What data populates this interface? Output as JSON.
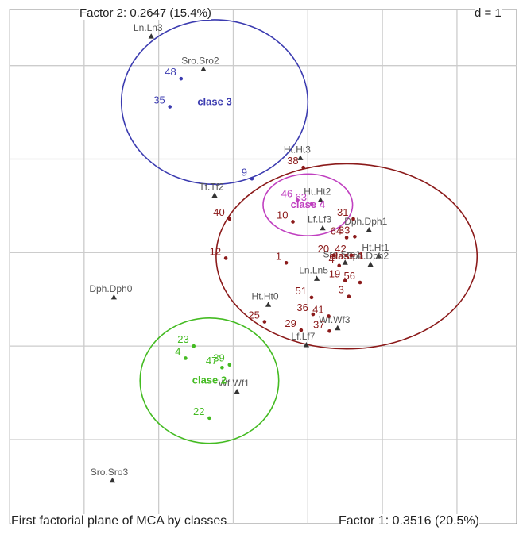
{
  "chart_data": {
    "type": "scatter",
    "title": "First factorial plane of MCA by classes",
    "xlabel": "Factor 1: 0.3516 (20.5%)",
    "ylabel": "Factor 2: 0.2647 (15.4%)",
    "scale_label": "d = 1",
    "grid": true,
    "xlim": [
      -3.0,
      3.8
    ],
    "ylim": [
      -2.9,
      2.6
    ],
    "colors": {
      "modality": "#555555",
      "class1": "#8b1a1a",
      "class2": "#44bb22",
      "class3": "#3b3bb0",
      "class4": "#c040c0",
      "grid": "#cccccc",
      "frame": "#888888"
    },
    "modalities": [
      {
        "label": "Ln.Ln3",
        "x": -1.1,
        "y": 2.31
      },
      {
        "label": "Sro.Sro2",
        "x": -0.4,
        "y": 1.96
      },
      {
        "label": "Tf.Tf2",
        "x": -0.25,
        "y": 0.61
      },
      {
        "label": "Ht.Ht3",
        "x": 0.9,
        "y": 1.01
      },
      {
        "label": "Ht.Ht2",
        "x": 1.17,
        "y": 0.56
      },
      {
        "label": "Lf.Lf3",
        "x": 1.2,
        "y": 0.26
      },
      {
        "label": "Dph.Dph1",
        "x": 1.82,
        "y": 0.24
      },
      {
        "label": "Ht.Ht1",
        "x": 1.95,
        "y": -0.04
      },
      {
        "label": "Sro.Sro1",
        "x": 1.5,
        "y": -0.11
      },
      {
        "label": "Dph.Dph2",
        "x": 1.84,
        "y": -0.13
      },
      {
        "label": "Ln.Ln5",
        "x": 1.12,
        "y": -0.28
      },
      {
        "label": "Dph.Dph0",
        "x": -1.6,
        "y": -0.48
      },
      {
        "label": "Ht.Ht0",
        "x": 0.47,
        "y": -0.56
      },
      {
        "label": "Wf.Wf3",
        "x": 1.4,
        "y": -0.81
      },
      {
        "label": "Lf.Lf7",
        "x": 0.98,
        "y": -0.99
      },
      {
        "label": "Wf.Wf1",
        "x": 0.05,
        "y": -1.49
      },
      {
        "label": "Sro.Sro3",
        "x": -1.62,
        "y": -2.44
      }
    ],
    "classes": [
      {
        "name": "clase 3",
        "color": "#3b3bb0",
        "center": [
          -0.25,
          1.61
        ],
        "radii": [
          1.25,
          0.88
        ],
        "points": [
          {
            "label": "48",
            "x": -0.7,
            "y": 1.86
          },
          {
            "label": "35",
            "x": -0.85,
            "y": 1.56
          },
          {
            "label": "9",
            "x": 0.25,
            "y": 0.79
          }
        ]
      },
      {
        "name": "clase 4",
        "color": "#c040c0",
        "center": [
          1.0,
          0.51
        ],
        "radii": [
          0.6,
          0.33
        ],
        "points": [
          {
            "label": "46",
            "x": 0.86,
            "y": 0.56
          },
          {
            "label": "63",
            "x": 1.05,
            "y": 0.52
          }
        ]
      },
      {
        "name": "clase 1",
        "color": "#8b1a1a",
        "center": [
          1.52,
          -0.04
        ],
        "radii": [
          1.75,
          0.99
        ],
        "points": [
          {
            "label": "38",
            "x": 0.94,
            "y": 0.91
          },
          {
            "label": "40",
            "x": -0.05,
            "y": 0.36
          },
          {
            "label": "10",
            "x": 0.8,
            "y": 0.33
          },
          {
            "label": "12",
            "x": -0.1,
            "y": -0.06
          },
          {
            "label": "1",
            "x": 0.71,
            "y": -0.11
          },
          {
            "label": "31",
            "x": 1.61,
            "y": 0.36
          },
          {
            "label": "64",
            "x": 1.52,
            "y": 0.16
          },
          {
            "label": "33",
            "x": 1.63,
            "y": 0.17
          },
          {
            "label": "20",
            "x": 1.35,
            "y": -0.03
          },
          {
            "label": "42",
            "x": 1.58,
            "y": -0.03
          },
          {
            "label": "19",
            "x": 1.5,
            "y": -0.3
          },
          {
            "label": "4",
            "x": 1.42,
            "y": -0.14
          },
          {
            "label": "56",
            "x": 1.7,
            "y": -0.32
          },
          {
            "label": "51",
            "x": 1.05,
            "y": -0.48
          },
          {
            "label": "36",
            "x": 1.07,
            "y": -0.66
          },
          {
            "label": "3",
            "x": 1.55,
            "y": -0.47
          },
          {
            "label": "41",
            "x": 1.28,
            "y": -0.68
          },
          {
            "label": "25",
            "x": 0.42,
            "y": -0.74
          },
          {
            "label": "29",
            "x": 0.91,
            "y": -0.83
          },
          {
            "label": "37",
            "x": 1.29,
            "y": -0.84
          }
        ]
      },
      {
        "name": "clase 2",
        "color": "#44bb22",
        "center": [
          -0.32,
          -1.37
        ],
        "radii": [
          0.93,
          0.67
        ],
        "points": [
          {
            "label": "23",
            "x": -0.53,
            "y": -1.0
          },
          {
            "label": "4",
            "x": -0.64,
            "y": -1.13
          },
          {
            "label": "47",
            "x": -0.15,
            "y": -1.23
          },
          {
            "label": "39",
            "x": -0.05,
            "y": -1.2
          },
          {
            "label": "22",
            "x": -0.32,
            "y": -1.77
          }
        ]
      }
    ]
  }
}
